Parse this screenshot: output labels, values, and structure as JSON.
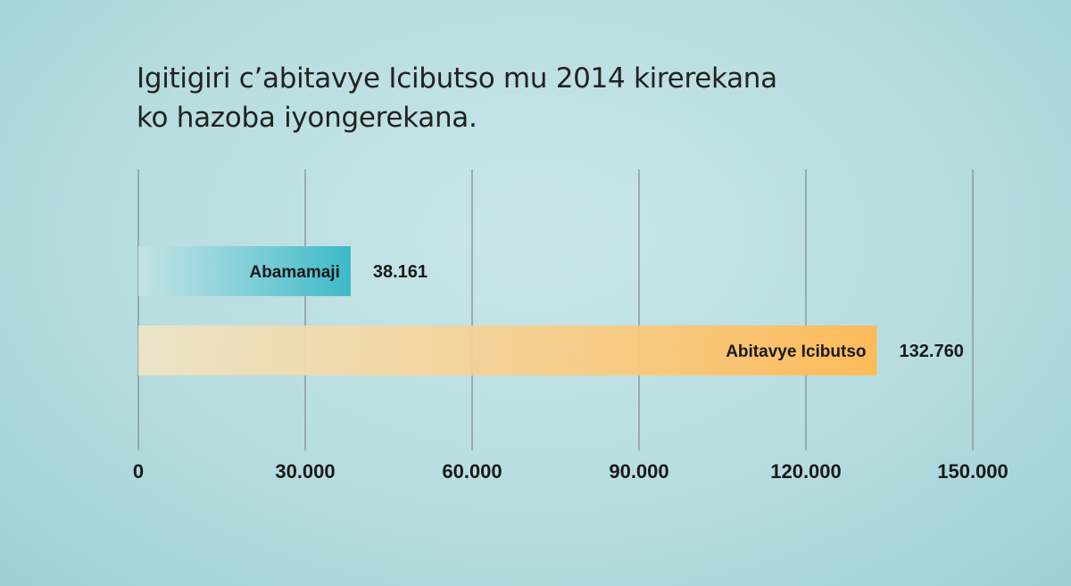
{
  "chart_data": {
    "type": "bar",
    "orientation": "horizontal",
    "title_lines": [
      "Igitigiri c’abitavye Icibutso mu 2014 kirerekana",
      "ko hazoba iyongerekana."
    ],
    "categories": [
      "Abamamaji",
      "Abitavye Icibutso"
    ],
    "values": [
      38161,
      132760
    ],
    "value_labels": [
      "38.161",
      "132.760"
    ],
    "xlim": [
      0,
      150000
    ],
    "xticks": [
      0,
      30000,
      60000,
      90000,
      120000,
      150000
    ],
    "xtick_labels": [
      "0",
      "30.000",
      "60.000",
      "90.000",
      "120.000",
      "150.000"
    ],
    "grid": true,
    "colors": {
      "Abamamaji": [
        "#c4e4e6",
        "#3bb9c9"
      ],
      "Abitavye Icibutso": [
        "#f3e4c3",
        "#fdbb5a"
      ],
      "gridline": "#8c9aa0",
      "text": "#1a1a1a"
    }
  }
}
